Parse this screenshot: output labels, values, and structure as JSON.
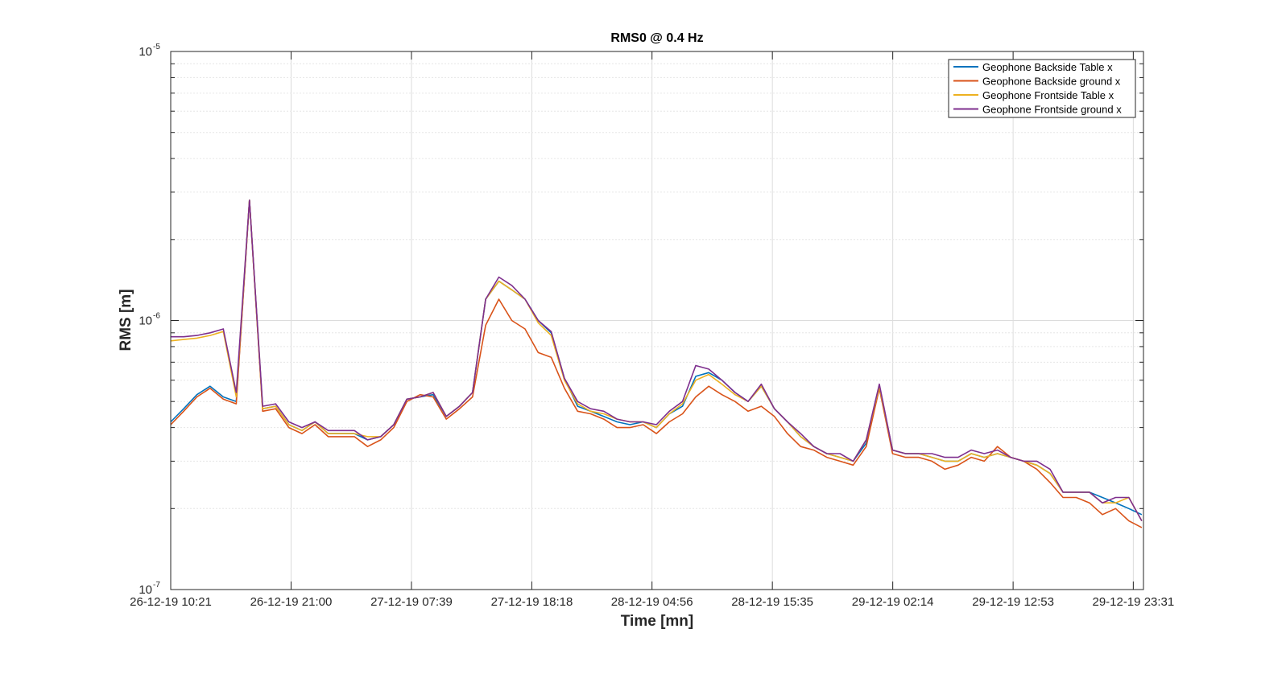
{
  "chart_data": {
    "type": "line",
    "title": "RMS0 @ 0.4 Hz",
    "xlabel": "Time [mn]",
    "ylabel": "RMS [m]",
    "yscale": "log",
    "ylim": [
      1e-07,
      1e-05
    ],
    "y_tick_labels": [
      {
        "base": "10",
        "exp": "-7"
      },
      {
        "base": "10",
        "exp": "-6"
      },
      {
        "base": "10",
        "exp": "-5"
      }
    ],
    "xlim": [
      "26-12-19 10:21",
      "30-12-19 00:25"
    ],
    "x_tick_labels": [
      "26-12-19 10:21",
      "26-12-19 21:00",
      "27-12-19 07:39",
      "27-12-19 18:18",
      "28-12-19 04:56",
      "28-12-19 15:35",
      "29-12-19 02:14",
      "29-12-19 12:53",
      "29-12-19 23:31"
    ],
    "grid": "on",
    "legend_position": "top-right",
    "colors": {
      "table_backside": "#0072BD",
      "ground_backside": "#D95319",
      "table_frontside": "#EDB120",
      "ground_frontside": "#7E2F8E"
    },
    "x": [
      "26-12-19 10:21",
      "26-12-19 11:30",
      "26-12-19 12:40",
      "26-12-19 13:50",
      "26-12-19 15:00",
      "26-12-19 16:09",
      "26-12-19 17:19",
      "26-12-19 18:29",
      "26-12-19 19:38",
      "26-12-19 20:48",
      "26-12-19 21:58",
      "26-12-19 23:07",
      "27-12-19 00:17",
      "27-12-19 01:27",
      "27-12-19 02:36",
      "27-12-19 03:46",
      "27-12-19 04:56",
      "27-12-19 06:05",
      "27-12-19 07:15",
      "27-12-19 08:25",
      "27-12-19 09:34",
      "27-12-19 10:44",
      "27-12-19 11:54",
      "27-12-19 13:03",
      "27-12-19 14:13",
      "27-12-19 15:23",
      "27-12-19 16:32",
      "27-12-19 17:42",
      "27-12-19 18:52",
      "27-12-19 20:01",
      "27-12-19 21:11",
      "27-12-19 22:21",
      "27-12-19 23:30",
      "28-12-19 00:40",
      "28-12-19 01:50",
      "28-12-19 02:59",
      "28-12-19 04:09",
      "28-12-19 05:19",
      "28-12-19 06:28",
      "28-12-19 07:38",
      "28-12-19 08:48",
      "28-12-19 09:57",
      "28-12-19 11:07",
      "28-12-19 12:17",
      "28-12-19 13:26",
      "28-12-19 14:36",
      "28-12-19 15:46",
      "28-12-19 16:55",
      "28-12-19 18:05",
      "28-12-19 19:15",
      "28-12-19 20:24",
      "28-12-19 21:34",
      "28-12-19 22:44",
      "28-12-19 23:53",
      "29-12-19 01:03",
      "29-12-19 02:13",
      "29-12-19 03:22",
      "29-12-19 04:32",
      "29-12-19 05:42",
      "29-12-19 06:51",
      "29-12-19 08:01",
      "29-12-19 09:11",
      "29-12-19 10:20",
      "29-12-19 11:30",
      "29-12-19 12:40",
      "29-12-19 13:49",
      "29-12-19 14:59",
      "29-12-19 16:09",
      "29-12-19 17:18",
      "29-12-19 18:28",
      "29-12-19 19:38",
      "29-12-19 20:47",
      "29-12-19 21:57",
      "29-12-19 23:07",
      "30-12-19 00:16"
    ],
    "series": [
      {
        "name": "Geophone Backside Table x",
        "color": "#0072BD",
        "values": [
          0.42,
          0.47,
          0.53,
          0.57,
          0.52,
          0.5,
          2.8,
          0.47,
          0.48,
          0.41,
          0.39,
          0.42,
          0.38,
          0.38,
          0.38,
          0.36,
          0.37,
          0.41,
          0.51,
          0.52,
          0.53,
          0.44,
          0.48,
          0.54,
          1.2,
          1.4,
          1.3,
          1.2,
          1.0,
          0.9,
          0.61,
          0.48,
          0.46,
          0.44,
          0.42,
          0.41,
          0.42,
          0.4,
          0.45,
          0.48,
          0.62,
          0.64,
          0.6,
          0.54,
          0.5,
          0.57,
          0.47,
          0.42,
          0.37,
          0.34,
          0.32,
          0.31,
          0.3,
          0.35,
          0.56,
          0.33,
          0.32,
          0.32,
          0.31,
          0.3,
          0.3,
          0.32,
          0.31,
          0.32,
          0.31,
          0.3,
          0.29,
          0.27,
          0.23,
          0.23,
          0.23,
          0.22,
          0.21,
          0.2,
          0.19
        ]
      },
      {
        "name": "Geophone Backside ground x",
        "color": "#D95319",
        "values": [
          0.41,
          0.46,
          0.52,
          0.56,
          0.51,
          0.49,
          2.8,
          0.46,
          0.47,
          0.4,
          0.38,
          0.41,
          0.37,
          0.37,
          0.37,
          0.34,
          0.36,
          0.4,
          0.5,
          0.53,
          0.52,
          0.43,
          0.47,
          0.52,
          0.96,
          1.2,
          1.0,
          0.93,
          0.76,
          0.73,
          0.56,
          0.46,
          0.45,
          0.43,
          0.4,
          0.4,
          0.41,
          0.38,
          0.42,
          0.45,
          0.52,
          0.57,
          0.53,
          0.5,
          0.46,
          0.48,
          0.44,
          0.38,
          0.34,
          0.33,
          0.31,
          0.3,
          0.29,
          0.34,
          0.56,
          0.32,
          0.31,
          0.31,
          0.3,
          0.28,
          0.29,
          0.31,
          0.3,
          0.34,
          0.31,
          0.3,
          0.28,
          0.25,
          0.22,
          0.22,
          0.21,
          0.19,
          0.2,
          0.18,
          0.17
        ]
      },
      {
        "name": "Geophone Frontside Table x",
        "color": "#EDB120",
        "values": [
          0.84,
          0.85,
          0.86,
          0.88,
          0.91,
          0.52,
          2.8,
          0.47,
          0.48,
          0.41,
          0.39,
          0.42,
          0.38,
          0.38,
          0.38,
          0.37,
          0.37,
          0.41,
          0.51,
          0.52,
          0.54,
          0.44,
          0.48,
          0.54,
          1.2,
          1.4,
          1.3,
          1.2,
          0.98,
          0.88,
          0.6,
          0.49,
          0.46,
          0.45,
          0.43,
          0.42,
          0.42,
          0.4,
          0.45,
          0.49,
          0.6,
          0.63,
          0.58,
          0.53,
          0.5,
          0.57,
          0.47,
          0.42,
          0.37,
          0.34,
          0.32,
          0.31,
          0.3,
          0.36,
          0.57,
          0.33,
          0.32,
          0.32,
          0.31,
          0.3,
          0.3,
          0.32,
          0.31,
          0.32,
          0.31,
          0.3,
          0.29,
          0.27,
          0.23,
          0.23,
          0.23,
          0.21,
          0.21,
          0.22,
          0.18
        ]
      },
      {
        "name": "Geophone Frontside ground x",
        "color": "#7E2F8E",
        "values": [
          0.87,
          0.87,
          0.88,
          0.9,
          0.93,
          0.54,
          2.8,
          0.48,
          0.49,
          0.42,
          0.4,
          0.42,
          0.39,
          0.39,
          0.39,
          0.36,
          0.37,
          0.41,
          0.51,
          0.52,
          0.54,
          0.44,
          0.48,
          0.54,
          1.2,
          1.45,
          1.35,
          1.2,
          1.0,
          0.91,
          0.61,
          0.5,
          0.47,
          0.46,
          0.43,
          0.42,
          0.42,
          0.41,
          0.46,
          0.5,
          0.68,
          0.66,
          0.6,
          0.54,
          0.5,
          0.58,
          0.47,
          0.42,
          0.38,
          0.34,
          0.32,
          0.32,
          0.3,
          0.36,
          0.58,
          0.33,
          0.32,
          0.32,
          0.32,
          0.31,
          0.31,
          0.33,
          0.32,
          0.33,
          0.31,
          0.3,
          0.3,
          0.28,
          0.23,
          0.23,
          0.23,
          0.21,
          0.22,
          0.22,
          0.18
        ]
      }
    ]
  }
}
